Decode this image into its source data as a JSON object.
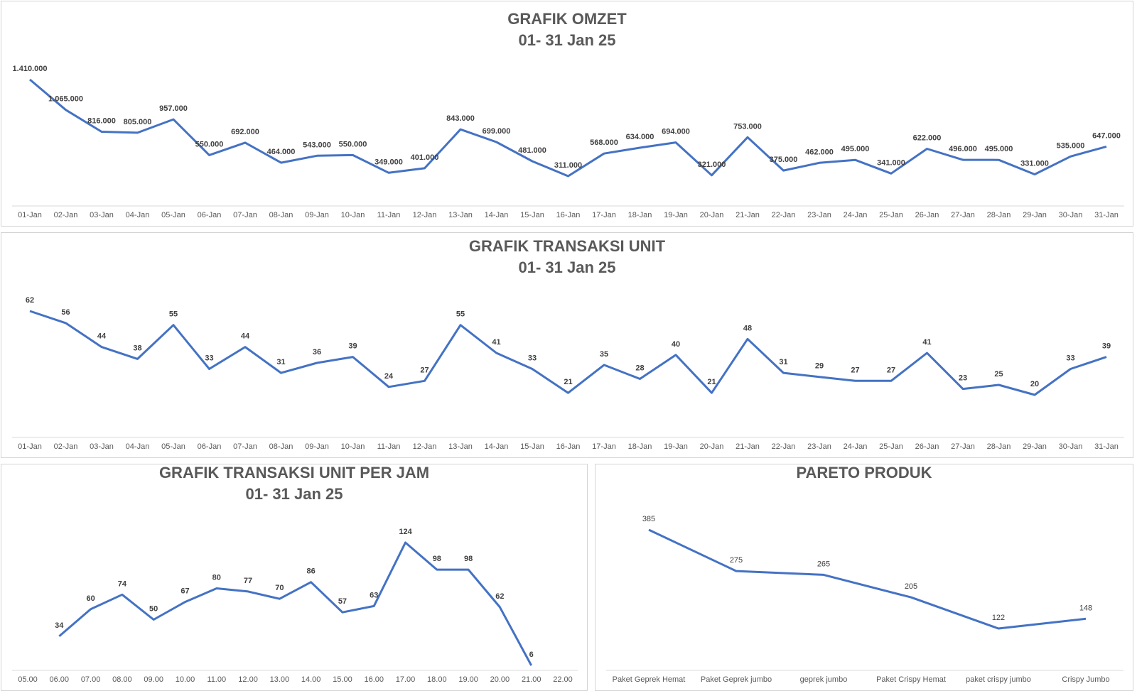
{
  "colors": {
    "line": "#4472C4",
    "axis": "#d9d9d9",
    "title": "#595959",
    "label": "#404040"
  },
  "chart_data": [
    {
      "id": "omzet",
      "type": "line",
      "title": "GRAFIK OMZET",
      "subtitle": "01- 31 Jan 25",
      "categories": [
        "01-Jan",
        "02-Jan",
        "03-Jan",
        "04-Jan",
        "05-Jan",
        "06-Jan",
        "07-Jan",
        "08-Jan",
        "09-Jan",
        "10-Jan",
        "11-Jan",
        "12-Jan",
        "13-Jan",
        "14-Jan",
        "15-Jan",
        "16-Jan",
        "17-Jan",
        "18-Jan",
        "19-Jan",
        "20-Jan",
        "21-Jan",
        "22-Jan",
        "23-Jan",
        "24-Jan",
        "25-Jan",
        "26-Jan",
        "27-Jan",
        "28-Jan",
        "29-Jan",
        "30-Jan",
        "31-Jan"
      ],
      "values": [
        1410000,
        1065000,
        816000,
        805000,
        957000,
        550000,
        692000,
        464000,
        543000,
        550000,
        349000,
        401000,
        843000,
        699000,
        481000,
        311000,
        568000,
        634000,
        694000,
        321000,
        753000,
        375000,
        462000,
        495000,
        341000,
        622000,
        496000,
        495000,
        331000,
        535000,
        647000
      ],
      "value_labels": [
        "1.410.000",
        "1.065.000",
        "816.000",
        "805.000",
        "957.000",
        "550.000",
        "692.000",
        "464.000",
        "543.000",
        "550.000",
        "349.000",
        "401.000",
        "843.000",
        "699.000",
        "481.000",
        "311.000",
        "568.000",
        "634.000",
        "694.000",
        "321.000",
        "753.000",
        "375.000",
        "462.000",
        "495.000",
        "341.000",
        "622.000",
        "496.000",
        "495.000",
        "331.000",
        "535.000",
        "647.000"
      ],
      "bold_labels": true,
      "ylim": [
        0,
        1500000
      ],
      "grid": false
    },
    {
      "id": "transaksi",
      "type": "line",
      "title": "GRAFIK TRANSAKSI UNIT",
      "subtitle": "01- 31 Jan 25",
      "categories": [
        "01-Jan",
        "02-Jan",
        "03-Jan",
        "04-Jan",
        "05-Jan",
        "06-Jan",
        "07-Jan",
        "08-Jan",
        "09-Jan",
        "10-Jan",
        "11-Jan",
        "12-Jan",
        "13-Jan",
        "14-Jan",
        "15-Jan",
        "16-Jan",
        "17-Jan",
        "18-Jan",
        "19-Jan",
        "20-Jan",
        "21-Jan",
        "22-Jan",
        "23-Jan",
        "24-Jan",
        "25-Jan",
        "26-Jan",
        "27-Jan",
        "28-Jan",
        "29-Jan",
        "30-Jan",
        "31-Jan"
      ],
      "values": [
        62,
        56,
        44,
        38,
        55,
        33,
        44,
        31,
        36,
        39,
        24,
        27,
        55,
        41,
        33,
        21,
        35,
        28,
        40,
        21,
        48,
        31,
        29,
        27,
        27,
        41,
        23,
        25,
        20,
        33,
        39
      ],
      "value_labels": [
        "62",
        "56",
        "44",
        "38",
        "55",
        "33",
        "44",
        "31",
        "36",
        "39",
        "24",
        "27",
        "55",
        "41",
        "33",
        "21",
        "35",
        "28",
        "40",
        "21",
        "48",
        "31",
        "29",
        "27",
        "27",
        "41",
        "23",
        "25",
        "20",
        "33",
        "39"
      ],
      "bold_labels": true,
      "ylim": [
        0,
        70
      ],
      "grid": false
    },
    {
      "id": "perjam",
      "type": "line",
      "title": "GRAFIK TRANSAKSI UNIT PER JAM",
      "subtitle": "01- 31 Jan 25",
      "categories": [
        "05.00",
        "06.00",
        "07.00",
        "08.00",
        "09.00",
        "10.00",
        "11.00",
        "12.00",
        "13.00",
        "14.00",
        "15.00",
        "16.00",
        "17.00",
        "18.00",
        "19.00",
        "20.00",
        "21.00",
        "22.00"
      ],
      "values": [
        null,
        34,
        60,
        74,
        50,
        67,
        80,
        77,
        70,
        86,
        57,
        63,
        124,
        98,
        98,
        62,
        6,
        null
      ],
      "value_labels": [
        "",
        "34",
        "60",
        "74",
        "50",
        "67",
        "80",
        "77",
        "70",
        "86",
        "57",
        "63",
        "124",
        "98",
        "98",
        "62",
        "6",
        ""
      ],
      "bold_labels": true,
      "ylim": [
        0,
        140
      ],
      "grid": false
    },
    {
      "id": "pareto",
      "type": "line",
      "title": "PARETO PRODUK",
      "subtitle": "",
      "categories": [
        "Paket Geprek Hemat",
        "Paket Geprek jumbo",
        "geprek jumbo",
        "Paket Crispy Hemat",
        "paket crispy jumbo",
        "Crispy Jumbo"
      ],
      "values": [
        385,
        275,
        265,
        205,
        122,
        148
      ],
      "value_labels": [
        "385",
        "275",
        "265",
        "205",
        "122",
        "148"
      ],
      "bold_labels": false,
      "ylim": [
        0,
        450
      ],
      "grid": false
    }
  ]
}
